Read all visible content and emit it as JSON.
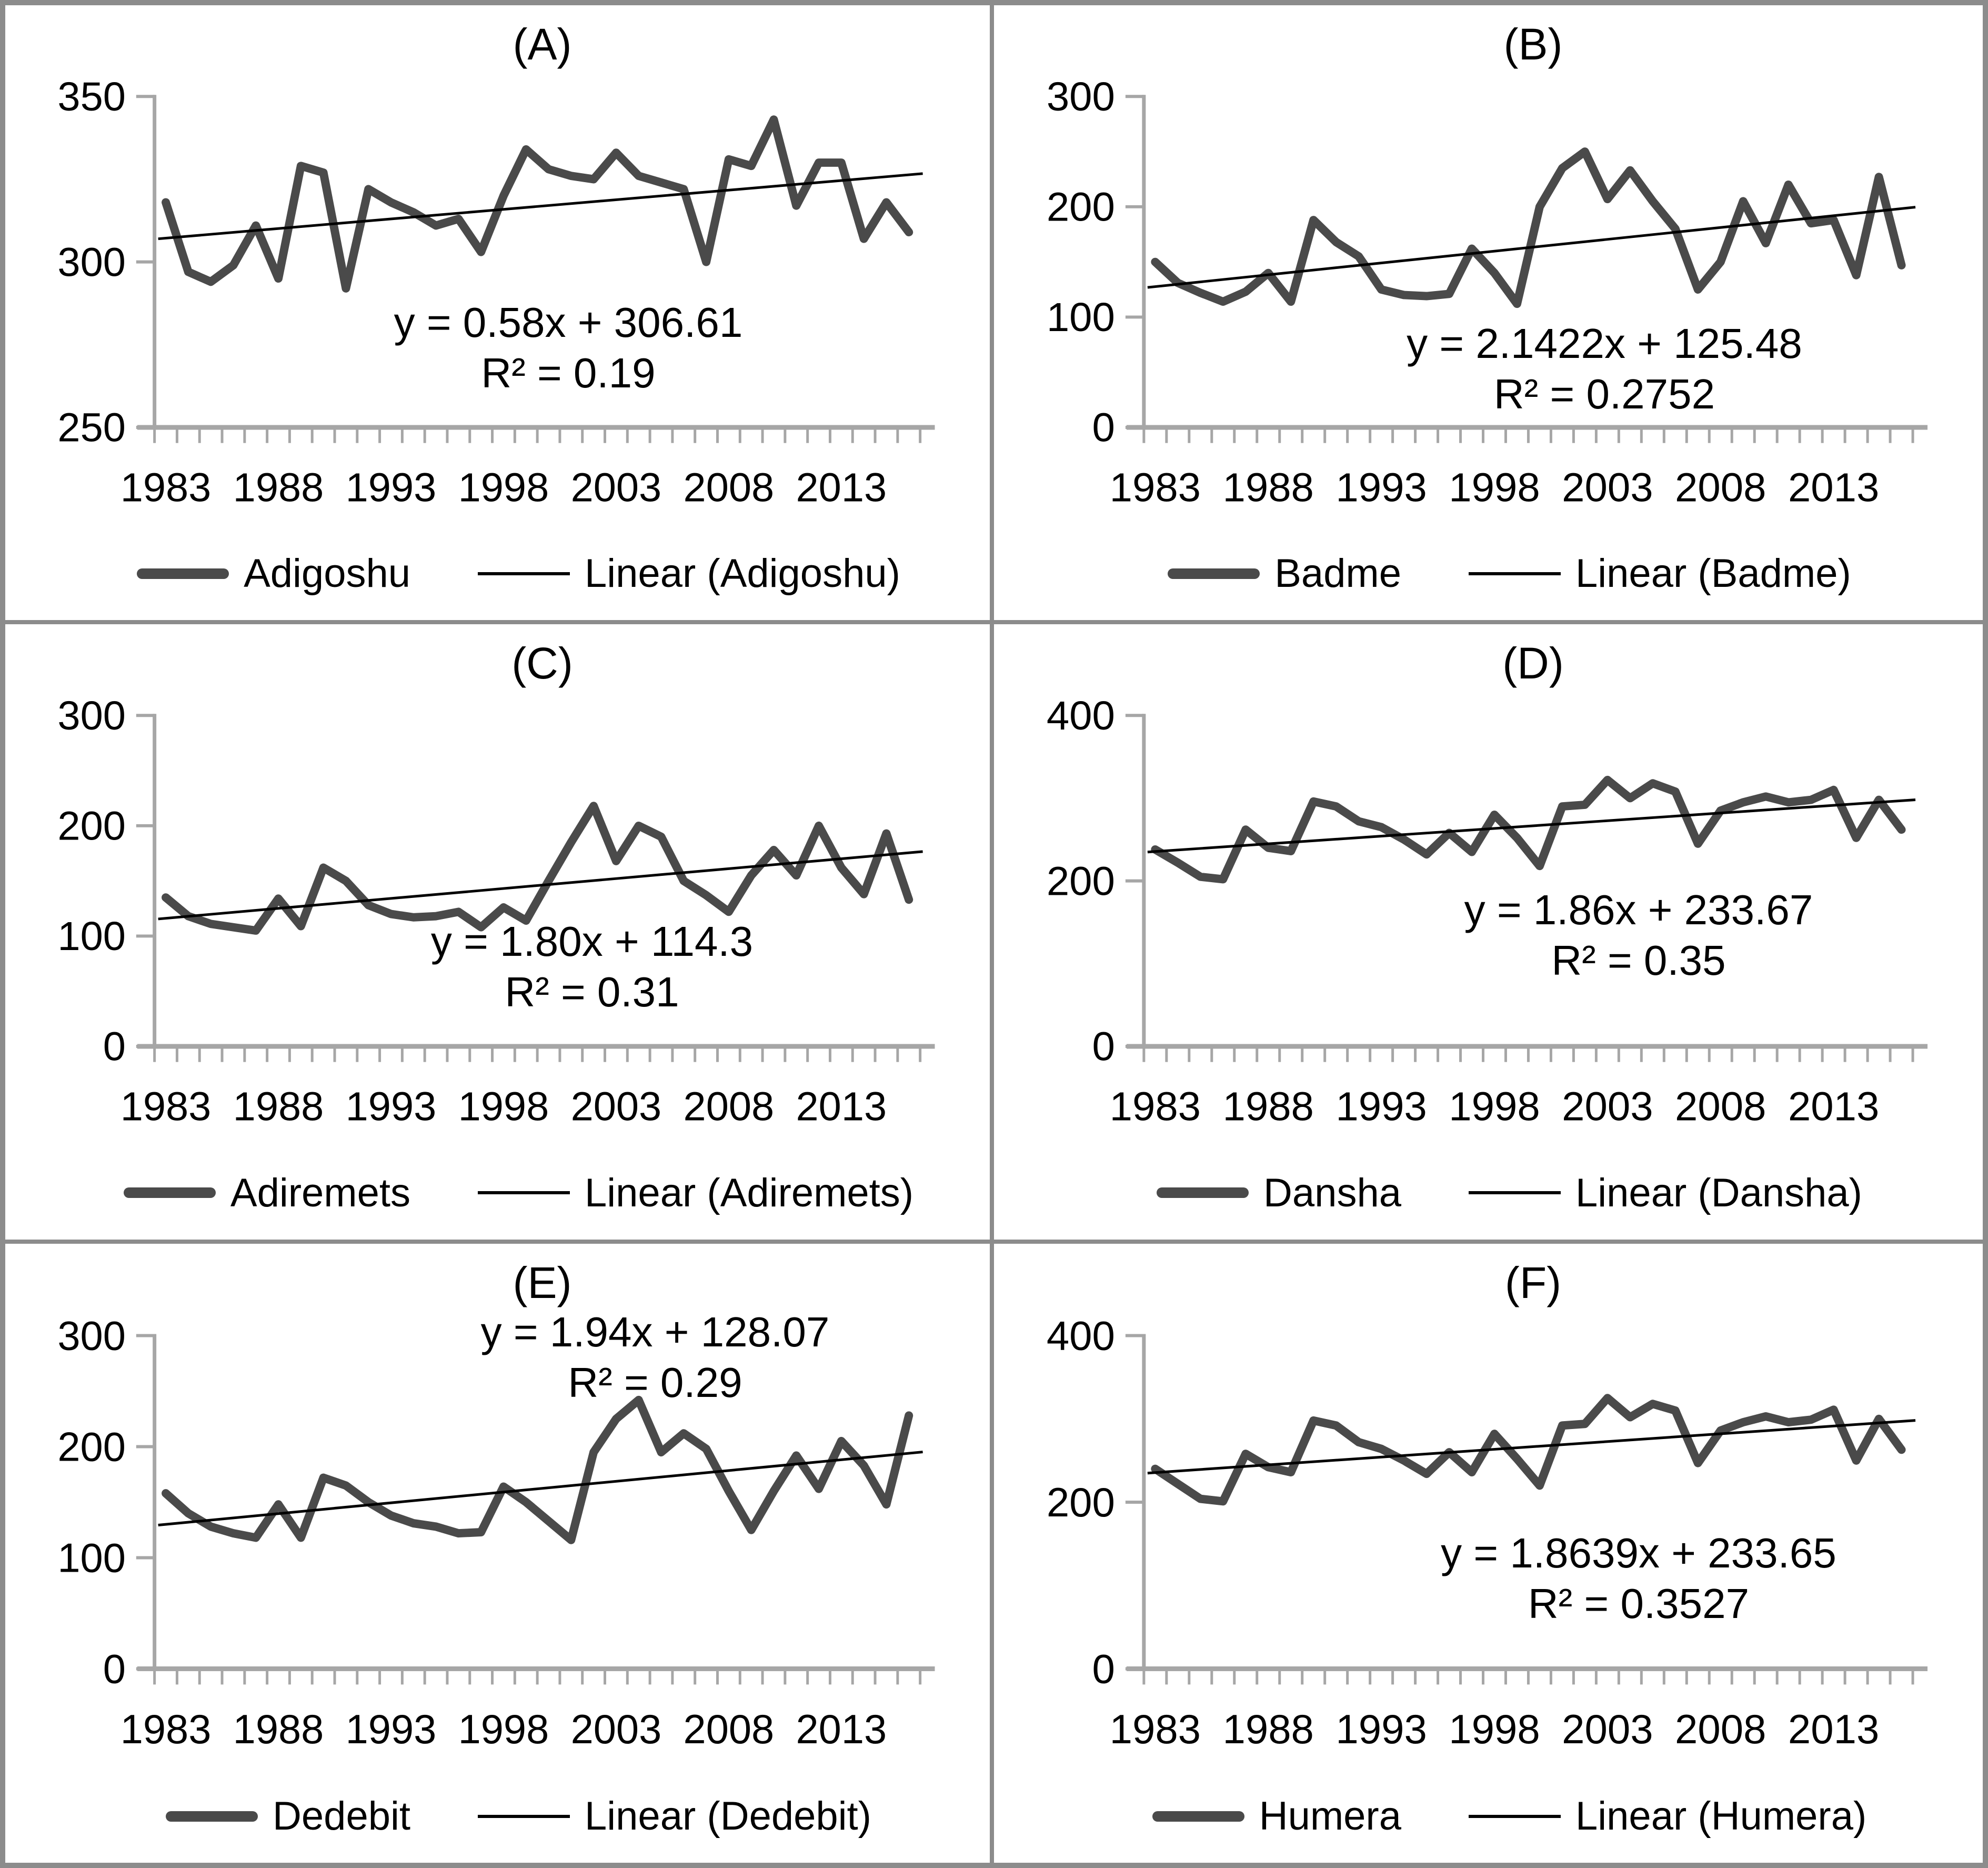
{
  "figure": {
    "panels_order": [
      "A",
      "B",
      "C",
      "D",
      "E",
      "F"
    ],
    "colors": {
      "series": "#4a4a4a",
      "trend": "#000000",
      "axis": "#a6a6a6",
      "border": "#8c8c8c",
      "text": "#000000",
      "background": "#ffffff"
    }
  },
  "chart_data": [
    {
      "panel": "A",
      "title": "(A)",
      "station": "Adigoshu",
      "type": "line",
      "xlabel": "",
      "ylabel": "",
      "ylim": [
        250,
        350
      ],
      "yticks": [
        250,
        300,
        350
      ],
      "x_tick_labels": [
        "1983",
        "1988",
        "1993",
        "1998",
        "2003",
        "2008",
        "2013"
      ],
      "years": [
        1983,
        1984,
        1985,
        1986,
        1987,
        1988,
        1989,
        1990,
        1991,
        1992,
        1993,
        1994,
        1995,
        1996,
        1997,
        1998,
        1999,
        2000,
        2001,
        2002,
        2003,
        2004,
        2005,
        2006,
        2007,
        2008,
        2009,
        2010,
        2011,
        2012,
        2013,
        2014,
        2015,
        2016
      ],
      "values": [
        318,
        297,
        294,
        299,
        311,
        295,
        329,
        327,
        292,
        322,
        318,
        315,
        311,
        313,
        303,
        320,
        334,
        328,
        326,
        325,
        333,
        326,
        324,
        322,
        300,
        331,
        329,
        343,
        317,
        330,
        330,
        307,
        318,
        309
      ],
      "trend": {
        "equation": "y = 0.58x + 306.61",
        "r2": "R² = 0.19",
        "slope": 0.58,
        "intercept": 306.61
      },
      "legend_series": "Adigoshu",
      "legend_linear": "Linear (Adigoshu)",
      "legend_position": "bottom-center",
      "grid": false,
      "layout": {
        "eq_cx": 1070,
        "eq_top": 555
      }
    },
    {
      "panel": "B",
      "title": "(B)",
      "station": "Badme",
      "type": "line",
      "xlabel": "",
      "ylabel": "",
      "ylim": [
        0,
        300
      ],
      "yticks": [
        0,
        100,
        200,
        300
      ],
      "x_tick_labels": [
        "1983",
        "1988",
        "1993",
        "1998",
        "2003",
        "2008",
        "2013"
      ],
      "years": [
        1983,
        1984,
        1985,
        1986,
        1987,
        1988,
        1989,
        1990,
        1991,
        1992,
        1993,
        1994,
        1995,
        1996,
        1997,
        1998,
        1999,
        2000,
        2001,
        2002,
        2003,
        2004,
        2005,
        2006,
        2007,
        2008,
        2009,
        2010,
        2011,
        2012,
        2013,
        2014,
        2015,
        2016
      ],
      "values": [
        150,
        131,
        122,
        114,
        123,
        140,
        114,
        188,
        168,
        155,
        125,
        120,
        119,
        121,
        162,
        140,
        112,
        200,
        235,
        250,
        207,
        233,
        205,
        180,
        125,
        150,
        205,
        167,
        220,
        185,
        188,
        138,
        227,
        147
      ],
      "trend": {
        "equation": "y = 2.1422x + 125.48",
        "r2": "R² = 0.2752",
        "slope": 2.1422,
        "intercept": 125.48
      },
      "legend_series": "Badme",
      "legend_linear": "Linear (Badme)",
      "legend_position": "bottom-center",
      "grid": false,
      "layout": {
        "eq_cx": 1160,
        "eq_top": 595
      }
    },
    {
      "panel": "C",
      "title": "(C)",
      "station": "Adiremets",
      "type": "line",
      "xlabel": "",
      "ylabel": "",
      "ylim": [
        0,
        300
      ],
      "yticks": [
        0,
        100,
        200,
        300
      ],
      "x_tick_labels": [
        "1983",
        "1988",
        "1993",
        "1998",
        "2003",
        "2008",
        "2013"
      ],
      "years": [
        1983,
        1984,
        1985,
        1986,
        1987,
        1988,
        1989,
        1990,
        1991,
        1992,
        1993,
        1994,
        1995,
        1996,
        1997,
        1998,
        1999,
        2000,
        2001,
        2002,
        2003,
        2004,
        2005,
        2006,
        2007,
        2008,
        2009,
        2010,
        2011,
        2012,
        2013,
        2014,
        2015,
        2016
      ],
      "values": [
        135,
        118,
        111,
        108,
        105,
        134,
        109,
        162,
        150,
        128,
        120,
        117,
        118,
        122,
        108,
        126,
        114,
        150,
        185,
        218,
        168,
        200,
        190,
        150,
        137,
        122,
        155,
        178,
        155,
        200,
        162,
        138,
        193,
        133
      ],
      "trend": {
        "equation": "y = 1.80x + 114.3",
        "r2": "R² = 0.31",
        "slope": 1.8,
        "intercept": 114.3
      },
      "legend_series": "Adiremets",
      "legend_linear": "Linear (Adiremets)",
      "legend_position": "bottom-center",
      "grid": false,
      "layout": {
        "eq_cx": 1115,
        "eq_top": 555
      }
    },
    {
      "panel": "D",
      "title": "(D)",
      "station": "Dansha",
      "type": "line",
      "xlabel": "",
      "ylabel": "",
      "ylim": [
        0,
        400
      ],
      "yticks": [
        0,
        200,
        400
      ],
      "x_tick_labels": [
        "1983",
        "1988",
        "1993",
        "1998",
        "2003",
        "2008",
        "2013"
      ],
      "years": [
        1983,
        1984,
        1985,
        1986,
        1987,
        1988,
        1989,
        1990,
        1991,
        1992,
        1993,
        1994,
        1995,
        1996,
        1997,
        1998,
        1999,
        2000,
        2001,
        2002,
        2003,
        2004,
        2005,
        2006,
        2007,
        2008,
        2009,
        2010,
        2011,
        2012,
        2013,
        2014,
        2015,
        2016
      ],
      "values": [
        238,
        222,
        205,
        202,
        262,
        240,
        236,
        296,
        290,
        272,
        265,
        250,
        232,
        258,
        235,
        280,
        252,
        218,
        290,
        292,
        322,
        300,
        318,
        308,
        245,
        285,
        295,
        302,
        295,
        298,
        310,
        252,
        298,
        262
      ],
      "trend": {
        "equation": "y = 1.86x + 233.67",
        "r2": "R² = 0.35",
        "slope": 1.86,
        "intercept": 233.67
      },
      "legend_series": "Dansha",
      "legend_linear": "Linear (Dansha)",
      "legend_position": "bottom-center",
      "grid": false,
      "layout": {
        "eq_cx": 1225,
        "eq_top": 495
      }
    },
    {
      "panel": "E",
      "title": "(E)",
      "station": "Dedebit",
      "type": "line",
      "xlabel": "",
      "ylabel": "",
      "ylim": [
        0,
        300
      ],
      "yticks": [
        0,
        100,
        200,
        300
      ],
      "x_tick_labels": [
        "1983",
        "1988",
        "1993",
        "1998",
        "2003",
        "2008",
        "2013"
      ],
      "years": [
        1983,
        1984,
        1985,
        1986,
        1987,
        1988,
        1989,
        1990,
        1991,
        1992,
        1993,
        1994,
        1995,
        1996,
        1997,
        1998,
        1999,
        2000,
        2001,
        2002,
        2003,
        2004,
        2005,
        2006,
        2007,
        2008,
        2009,
        2010,
        2011,
        2012,
        2013,
        2014,
        2015,
        2016
      ],
      "values": [
        158,
        140,
        128,
        122,
        118,
        148,
        118,
        172,
        165,
        150,
        138,
        131,
        128,
        122,
        123,
        164,
        150,
        133,
        116,
        195,
        225,
        242,
        195,
        212,
        198,
        160,
        125,
        160,
        192,
        162,
        205,
        183,
        148,
        228
      ],
      "trend": {
        "equation": "y = 1.94x + 128.07",
        "r2": "R² = 0.29",
        "slope": 1.94,
        "intercept": 128.07
      },
      "legend_series": "Dedebit",
      "legend_linear": "Linear (Dedebit)",
      "legend_position": "bottom-center",
      "grid": false,
      "layout": {
        "eq_cx": 1235,
        "eq_top": 120
      }
    },
    {
      "panel": "F",
      "title": "(F)",
      "station": "Humera",
      "type": "line",
      "xlabel": "",
      "ylabel": "",
      "ylim": [
        0,
        400
      ],
      "yticks": [
        0,
        200,
        400
      ],
      "x_tick_labels": [
        "1983",
        "1988",
        "1993",
        "1998",
        "2003",
        "2008",
        "2013"
      ],
      "years": [
        1983,
        1984,
        1985,
        1986,
        1987,
        1988,
        1989,
        1990,
        1991,
        1992,
        1993,
        1994,
        1995,
        1996,
        1997,
        1998,
        1999,
        2000,
        2001,
        2002,
        2003,
        2004,
        2005,
        2006,
        2007,
        2008,
        2009,
        2010,
        2011,
        2012,
        2013,
        2014,
        2015,
        2016
      ],
      "values": [
        240,
        222,
        204,
        201,
        258,
        242,
        236,
        298,
        292,
        272,
        264,
        250,
        234,
        260,
        236,
        282,
        252,
        220,
        292,
        294,
        325,
        302,
        318,
        310,
        247,
        286,
        296,
        303,
        296,
        299,
        311,
        250,
        300,
        263
      ],
      "trend": {
        "equation": "y = 1.8639x + 233.65",
        "r2": "R² = 0.3527",
        "slope": 1.8639,
        "intercept": 233.65
      },
      "legend_series": "Humera",
      "legend_linear": "Linear (Humera)",
      "legend_position": "bottom-center",
      "grid": false,
      "layout": {
        "eq_cx": 1225,
        "eq_top": 540
      }
    }
  ]
}
